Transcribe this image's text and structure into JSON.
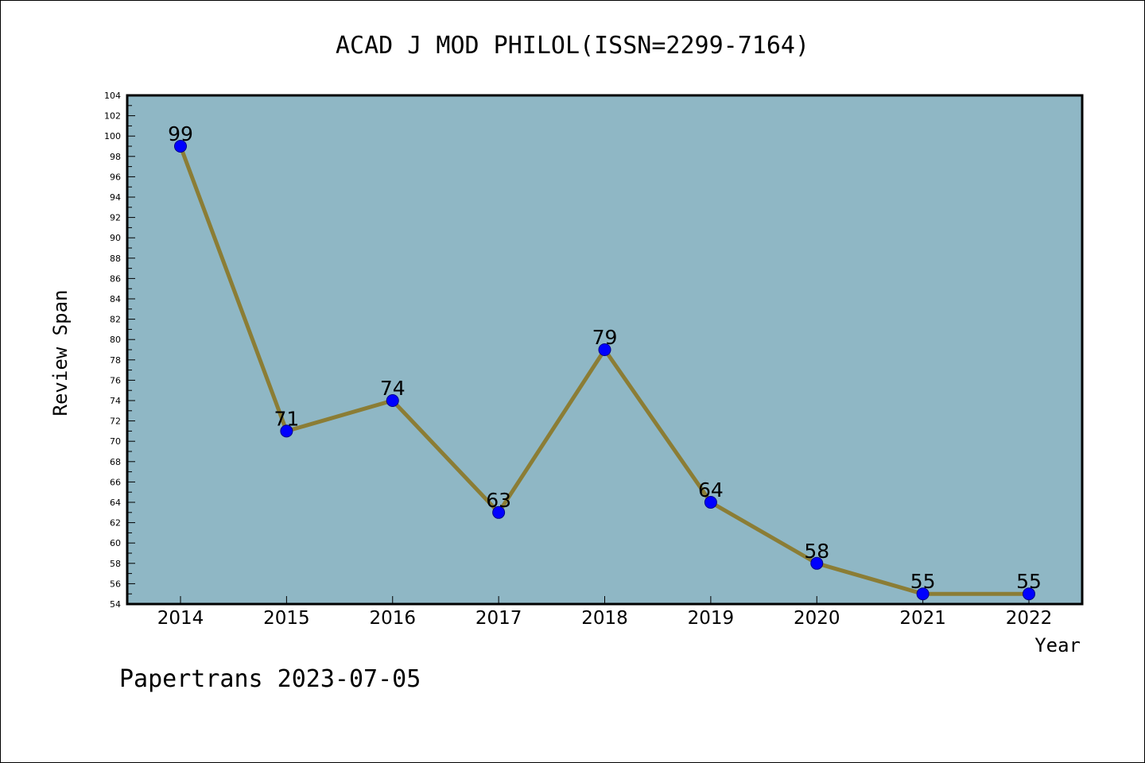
{
  "chart_data": {
    "type": "line",
    "title": "ACAD J MOD PHILOL(ISSN=2299-7164)",
    "xlabel": "Year",
    "ylabel": "Review Span",
    "x": [
      "2014",
      "2015",
      "2016",
      "2017",
      "2018",
      "2019",
      "2020",
      "2021",
      "2022"
    ],
    "series": [
      {
        "values": [
          99,
          71,
          74,
          63,
          79,
          64,
          58,
          55,
          55
        ]
      }
    ],
    "ylim": [
      54,
      104
    ],
    "ytick_step": 2,
    "grid": false,
    "plot_background": "#8fb7c5",
    "line_color": "#8b7d35",
    "marker_color": "#0000ff"
  },
  "footer": "Papertrans 2023-07-05"
}
